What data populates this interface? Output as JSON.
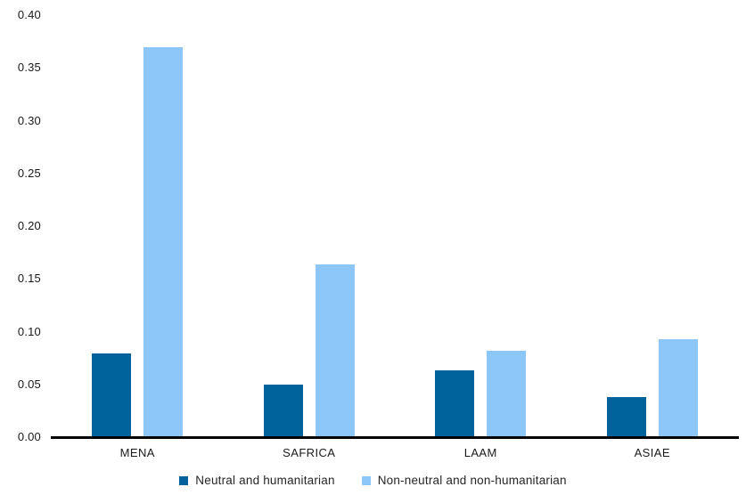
{
  "chart_data": {
    "type": "bar",
    "title": "",
    "xlabel": "",
    "ylabel": "",
    "categories": [
      "MENA",
      "SAFRICA",
      "LAAM",
      "ASIAE"
    ],
    "series": [
      {
        "name": "Neutral and humanitarian",
        "color": "#00639C",
        "values": [
          0.079,
          0.05,
          0.063,
          0.038
        ]
      },
      {
        "name": "Non-neutral and non-humanitarian",
        "color": "#8DC6F9",
        "values": [
          0.37,
          0.164,
          0.082,
          0.093
        ]
      }
    ],
    "ylim": [
      0,
      0.4
    ],
    "ytick_values": [
      0,
      0.05,
      0.1,
      0.15,
      0.2,
      0.25,
      0.3,
      0.35,
      0.4
    ],
    "ytick_labels": [
      "0.00",
      "0.05",
      "0.10",
      "0.15",
      "0.20",
      "0.25",
      "0.30",
      "0.35",
      "0.40"
    ],
    "grid": false,
    "legend_position": "bottom",
    "axis_color": "#000000",
    "text_color": "#1a1a1a",
    "background_color": "#ffffff"
  }
}
